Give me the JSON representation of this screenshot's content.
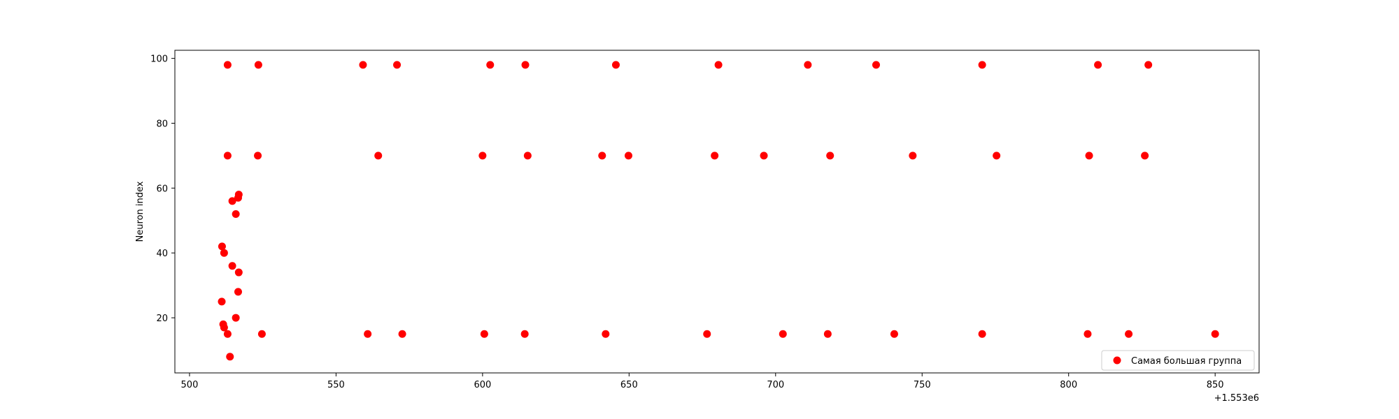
{
  "chart_data": {
    "type": "scatter",
    "title": "",
    "xlabel": "",
    "ylabel": "Neuron index",
    "x_offset_label": "+1.553e6",
    "xlim": [
      495,
      865
    ],
    "ylim": [
      3,
      102.5
    ],
    "xticks": [
      500,
      550,
      600,
      650,
      700,
      750,
      800,
      850
    ],
    "yticks": [
      20,
      40,
      60,
      80,
      100
    ],
    "grid": false,
    "legend_position": "lower-right",
    "series": [
      {
        "name": "Самая большая группа",
        "color": "#ff0000",
        "points": [
          {
            "x": 513.0,
            "y": 98
          },
          {
            "x": 523.5,
            "y": 98
          },
          {
            "x": 559.2,
            "y": 98
          },
          {
            "x": 570.8,
            "y": 98
          },
          {
            "x": 602.6,
            "y": 98
          },
          {
            "x": 614.6,
            "y": 98
          },
          {
            "x": 645.5,
            "y": 98
          },
          {
            "x": 680.5,
            "y": 98
          },
          {
            "x": 711.0,
            "y": 98
          },
          {
            "x": 734.3,
            "y": 98
          },
          {
            "x": 770.5,
            "y": 98
          },
          {
            "x": 810.0,
            "y": 98
          },
          {
            "x": 827.2,
            "y": 98
          },
          {
            "x": 513.0,
            "y": 70
          },
          {
            "x": 523.3,
            "y": 70
          },
          {
            "x": 564.4,
            "y": 70
          },
          {
            "x": 600.0,
            "y": 70
          },
          {
            "x": 615.4,
            "y": 70
          },
          {
            "x": 640.8,
            "y": 70
          },
          {
            "x": 649.8,
            "y": 70
          },
          {
            "x": 679.2,
            "y": 70
          },
          {
            "x": 696.0,
            "y": 70
          },
          {
            "x": 718.6,
            "y": 70
          },
          {
            "x": 746.8,
            "y": 70
          },
          {
            "x": 775.4,
            "y": 70
          },
          {
            "x": 807.0,
            "y": 70
          },
          {
            "x": 826.0,
            "y": 70
          },
          {
            "x": 516.8,
            "y": 58
          },
          {
            "x": 516.6,
            "y": 57
          },
          {
            "x": 514.6,
            "y": 56
          },
          {
            "x": 515.8,
            "y": 52
          },
          {
            "x": 511.1,
            "y": 42
          },
          {
            "x": 511.8,
            "y": 40
          },
          {
            "x": 514.6,
            "y": 36
          },
          {
            "x": 516.8,
            "y": 34
          },
          {
            "x": 516.6,
            "y": 28
          },
          {
            "x": 511.0,
            "y": 25
          },
          {
            "x": 515.8,
            "y": 20
          },
          {
            "x": 511.5,
            "y": 18
          },
          {
            "x": 511.8,
            "y": 17
          },
          {
            "x": 513.0,
            "y": 15
          },
          {
            "x": 513.8,
            "y": 8
          },
          {
            "x": 524.7,
            "y": 15
          },
          {
            "x": 560.8,
            "y": 15
          },
          {
            "x": 572.6,
            "y": 15
          },
          {
            "x": 600.6,
            "y": 15
          },
          {
            "x": 614.4,
            "y": 15
          },
          {
            "x": 642.0,
            "y": 15
          },
          {
            "x": 676.6,
            "y": 15
          },
          {
            "x": 702.5,
            "y": 15
          },
          {
            "x": 717.8,
            "y": 15
          },
          {
            "x": 740.5,
            "y": 15
          },
          {
            "x": 770.5,
            "y": 15
          },
          {
            "x": 806.5,
            "y": 15
          },
          {
            "x": 820.5,
            "y": 15
          },
          {
            "x": 850.0,
            "y": 15
          }
        ]
      }
    ]
  }
}
